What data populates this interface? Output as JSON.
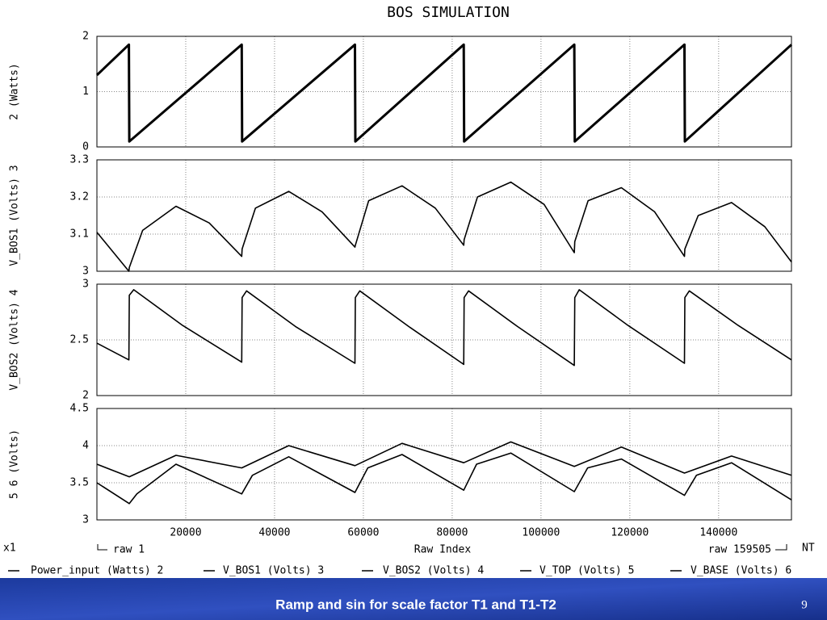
{
  "title": "BOS SIMULATION",
  "chart_data": [
    {
      "type": "line",
      "ylabel": "2 (Watts)",
      "ylim": [
        0,
        2
      ],
      "yticks": [
        0,
        1,
        2
      ],
      "series": [
        {
          "name": "Power_input (Watts) 2",
          "color": "#000000",
          "x": [
            0,
            7200,
            7300,
            32600,
            32700,
            58100,
            58200,
            82600,
            82700,
            107500,
            107600,
            132300,
            132400,
            156400
          ],
          "values": [
            1.3,
            1.85,
            0.1,
            1.85,
            0.1,
            1.85,
            0.1,
            1.85,
            0.1,
            1.85,
            0.1,
            1.85,
            0.1,
            1.85
          ]
        }
      ]
    },
    {
      "type": "line",
      "ylabel": "V_BOS1 (Volts) 3",
      "ylim": [
        3,
        3.3
      ],
      "yticks": [
        3,
        3.1,
        3.2,
        3.3
      ],
      "series": [
        {
          "name": "V_BOS1 (Volts) 3",
          "color": "#000000",
          "x": [
            0,
            7200,
            7300,
            10300,
            17800,
            25300,
            32600,
            32700,
            35700,
            43200,
            50700,
            58100,
            58200,
            61200,
            68700,
            76200,
            82600,
            82700,
            85700,
            93200,
            100700,
            107500,
            107600,
            110600,
            118100,
            125600,
            132300,
            132400,
            135400,
            142900,
            150400,
            156400
          ],
          "values": [
            3.105,
            3.0,
            3.01,
            3.11,
            3.175,
            3.13,
            3.04,
            3.06,
            3.17,
            3.215,
            3.16,
            3.065,
            3.07,
            3.19,
            3.23,
            3.17,
            3.07,
            3.085,
            3.2,
            3.24,
            3.18,
            3.05,
            3.08,
            3.19,
            3.225,
            3.16,
            3.04,
            3.06,
            3.15,
            3.185,
            3.12,
            3.025
          ]
        }
      ]
    },
    {
      "type": "line",
      "ylabel": "V_BOS2 (Volts) 4",
      "ylim": [
        2,
        3
      ],
      "yticks": [
        2,
        2.5,
        3
      ],
      "series": [
        {
          "name": "V_BOS2 (Volts) 4",
          "color": "#000000",
          "x": [
            0,
            7200,
            7300,
            8300,
            19300,
            32600,
            32700,
            33700,
            44700,
            58100,
            58200,
            59200,
            70200,
            82600,
            82700,
            83700,
            94700,
            107500,
            107600,
            108600,
            119600,
            132300,
            132400,
            133400,
            144400,
            156400
          ],
          "values": [
            2.47,
            2.32,
            2.9,
            2.95,
            2.63,
            2.3,
            2.88,
            2.94,
            2.62,
            2.29,
            2.88,
            2.94,
            2.62,
            2.28,
            2.88,
            2.94,
            2.62,
            2.27,
            2.88,
            2.95,
            2.63,
            2.29,
            2.88,
            2.94,
            2.63,
            2.32
          ]
        }
      ]
    },
    {
      "type": "line",
      "ylabel": "5 6 (Volts)",
      "ylim": [
        3,
        4.5
      ],
      "yticks": [
        3,
        3.5,
        4,
        4.5
      ],
      "xlim": [
        0,
        156400
      ],
      "xticks": [
        20000,
        40000,
        60000,
        80000,
        100000,
        120000,
        140000
      ],
      "xlabel": "Raw Index",
      "scale_label": "x1",
      "x_start_label": "raw 1",
      "x_end_label": "raw 159505",
      "corner_label": "NT",
      "series": [
        {
          "name": "V_TOP (Volts) 5",
          "color": "#000000",
          "x": [
            0,
            7300,
            17800,
            32600,
            43200,
            58100,
            68700,
            82600,
            93200,
            107500,
            118100,
            132300,
            142900,
            156400
          ],
          "values": [
            3.75,
            3.58,
            3.87,
            3.7,
            4.0,
            3.73,
            4.03,
            3.77,
            4.05,
            3.72,
            3.98,
            3.63,
            3.86,
            3.6
          ]
        },
        {
          "name": "V_BASE (Volts) 6",
          "color": "#000000",
          "x": [
            0,
            7300,
            9000,
            17800,
            32600,
            35000,
            43200,
            58100,
            61000,
            68700,
            82600,
            85500,
            93200,
            107500,
            110500,
            118100,
            132300,
            135000,
            142900,
            156400
          ],
          "values": [
            3.5,
            3.22,
            3.35,
            3.75,
            3.35,
            3.6,
            3.85,
            3.37,
            3.7,
            3.88,
            3.4,
            3.75,
            3.9,
            3.38,
            3.7,
            3.82,
            3.33,
            3.6,
            3.77,
            3.27
          ]
        }
      ]
    }
  ],
  "slide": {
    "caption": "Ramp and sin for scale factor T1 and T1-T2",
    "page_number": "9"
  }
}
